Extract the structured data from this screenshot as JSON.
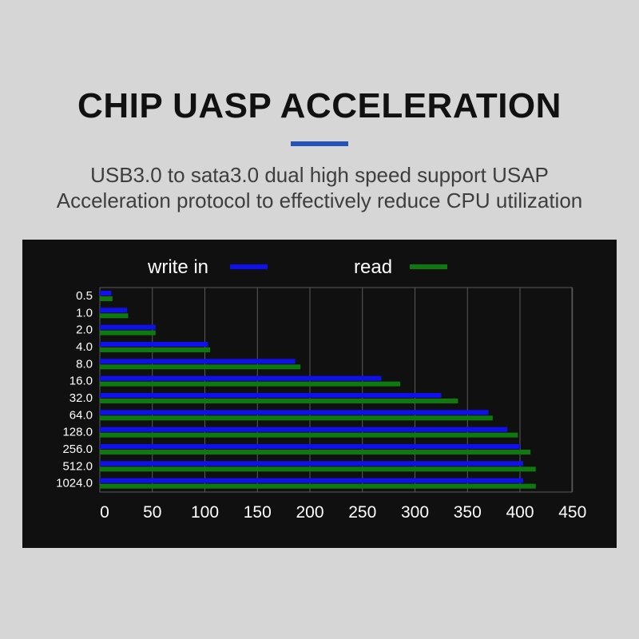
{
  "header": {
    "title": "CHIP UASP ACCELERATION",
    "subtitle_line1": "USB3.0 to sata3.0 dual high speed support USAP",
    "subtitle_line2": "Acceleration protocol to effectively reduce CPU utilization",
    "accent_color": "#2452b8"
  },
  "chart_data": {
    "type": "bar",
    "orientation": "horizontal",
    "categories": [
      "0.5",
      "1.0",
      "2.0",
      "4.0",
      "8.0",
      "16.0",
      "32.0",
      "64.0",
      "128.0",
      "256.0",
      "512.0",
      "1024.0"
    ],
    "series": [
      {
        "name": "write in",
        "color": "#1010ee",
        "values": [
          11,
          26,
          53,
          103,
          186,
          268,
          325,
          370,
          388,
          400,
          403,
          403
        ]
      },
      {
        "name": "read",
        "color": "#0e7a0e",
        "values": [
          12,
          27,
          53,
          105,
          191,
          286,
          341,
          374,
          398,
          410,
          415,
          415
        ]
      }
    ],
    "x_ticks": [
      "0",
      "50",
      "100",
      "150",
      "200",
      "250",
      "300",
      "350",
      "400",
      "450"
    ],
    "xlim": [
      0,
      450
    ],
    "grid": true,
    "legend_position": "top"
  }
}
